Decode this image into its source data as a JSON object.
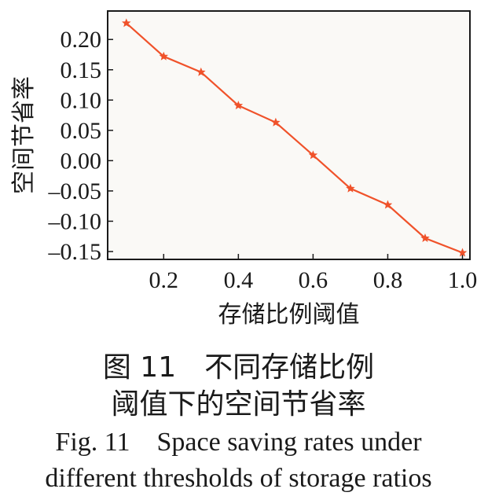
{
  "chart_data": {
    "type": "line",
    "x": [
      0.1,
      0.2,
      0.3,
      0.4,
      0.5,
      0.6,
      0.7,
      0.8,
      0.9,
      1.0
    ],
    "series": [
      {
        "values": [
          0.227,
          0.172,
          0.146,
          0.091,
          0.063,
          0.009,
          -0.046,
          -0.073,
          -0.128,
          -0.152
        ]
      }
    ],
    "xlabel": "存储比例阈值",
    "ylabel": "空间节省率",
    "xlim": [
      0.05,
      1.02
    ],
    "ylim": [
      -0.163,
      0.247
    ],
    "xticks": [
      0.2,
      0.4,
      0.6,
      0.8,
      1.0
    ],
    "xtick_labels": [
      "0.2",
      "0.4",
      "0.6",
      "0.8",
      "1.0"
    ],
    "yticks": [
      0.2,
      0.15,
      0.1,
      0.05,
      0.0,
      -0.05,
      -0.1,
      -0.15
    ],
    "ytick_labels": [
      "0.20",
      "0.15",
      "0.10",
      "0.05",
      "0.00",
      "–0.05",
      "–0.10",
      "–0.15"
    ],
    "grid": false,
    "line_color": "#f0522a",
    "plot_background": "#faf9f6"
  },
  "caption": {
    "cn_line1": "图 11　不同存储比例",
    "cn_line2": "阈值下的空间节省率",
    "en_line1": "Fig. 11　Space saving rates under",
    "en_line2": "different thresholds of storage ratios"
  }
}
